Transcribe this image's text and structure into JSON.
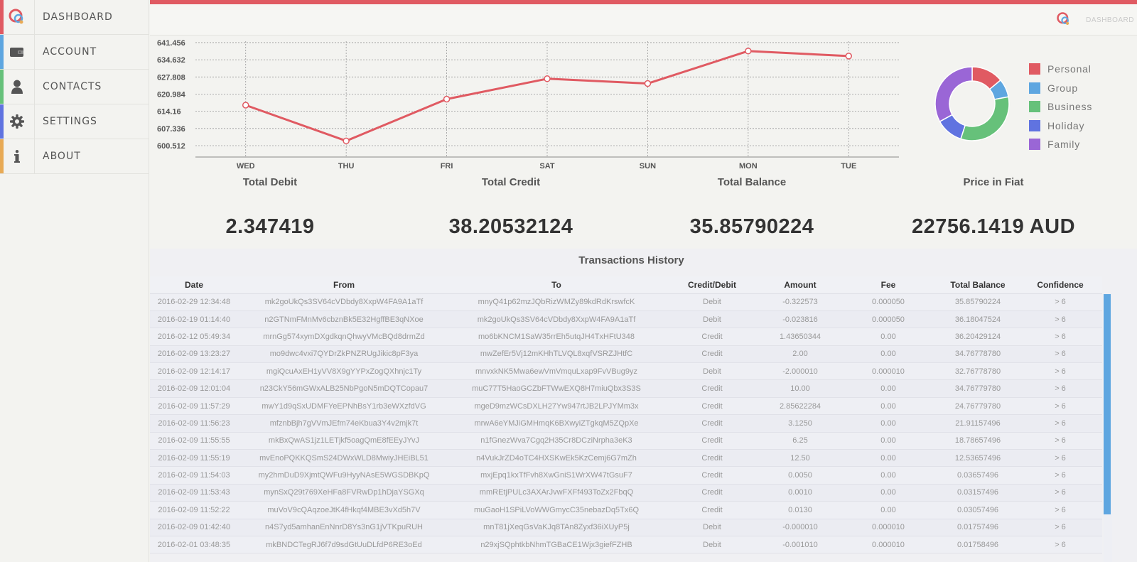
{
  "sidebar": {
    "items": [
      {
        "label": "DASHBOARD",
        "accent": "#e05a62",
        "icon": "app-logo-icon"
      },
      {
        "label": "ACCOUNT",
        "accent": "#5ea6e0",
        "icon": "wallet-icon"
      },
      {
        "label": "CONTACTS",
        "accent": "#66c17a",
        "icon": "user-icon"
      },
      {
        "label": "SETTINGS",
        "accent": "#6073e0",
        "icon": "gear-icon"
      },
      {
        "label": "ABOUT",
        "accent": "#e8aa55",
        "icon": "info-icon"
      }
    ]
  },
  "header": {
    "label": "DASHBOARD"
  },
  "chart_data": [
    {
      "type": "line",
      "categories": [
        "WED",
        "THU",
        "FRI",
        "SAT",
        "SUN",
        "MON",
        "TUE"
      ],
      "values": [
        616.6,
        602.4,
        619.0,
        627.1,
        625.2,
        638.1,
        636.1
      ],
      "yticks": [
        "641.456",
        "634.632",
        "627.808",
        "620.984",
        "614.16",
        "607.336",
        "600.512"
      ],
      "ylim": [
        596.0,
        642.0
      ],
      "grid": true,
      "color": "#e05a62"
    },
    {
      "type": "pie",
      "labels": [
        "Personal",
        "Group",
        "Business",
        "Holiday",
        "Family"
      ],
      "values": [
        14,
        8,
        33,
        12,
        33
      ],
      "colors": [
        "#e05a62",
        "#5ea6e0",
        "#66c17a",
        "#6073e0",
        "#9a66d6"
      ],
      "legend": "right"
    }
  ],
  "stats": [
    {
      "title": "Total Debit",
      "value": "2.347419"
    },
    {
      "title": "Total Credit",
      "value": "38.20532124"
    },
    {
      "title": "Total Balance",
      "value": "35.85790224"
    },
    {
      "title": "Price in Fiat",
      "value": "22756.1419 AUD"
    }
  ],
  "transactions": {
    "title": "Transactions History",
    "columns": [
      "Date",
      "From",
      "To",
      "Credit/Debit",
      "Amount",
      "Fee",
      "Total Balance",
      "Confidence"
    ],
    "rows": [
      [
        "2016-02-29 12:34:48",
        "mk2goUkQs3SV64cVDbdy8XxpW4FA9A1aTf",
        "mnyQ41p62mzJQbRizWMZy89kdRdKrswfcK",
        "Debit",
        "-0.322573",
        "0.000050",
        "35.85790224",
        "> 6"
      ],
      [
        "2016-02-19 01:14:40",
        "n2GTNmFMnMv6cbznBk5E32HgffBE3qNXoe",
        "mk2goUkQs3SV64cVDbdy8XxpW4FA9A1aTf",
        "Debit",
        "-0.023816",
        "0.000050",
        "36.18047524",
        "> 6"
      ],
      [
        "2016-02-12 05:49:34",
        "mrnGg574xymDXgdkqnQhwyVMcBQd8drmZd",
        "mo6bKNCM1SaW35rrEh5utqJH4TxHFtU348",
        "Credit",
        "1.43650344",
        "0.00",
        "36.20429124",
        "> 6"
      ],
      [
        "2016-02-09 13:23:27",
        "mo9dwc4vxi7QYDrZkPNZRUgJikic8pF3ya",
        "mwZefEr5Vj12mKHhTLVQL8xqfVSRZJHtfC",
        "Credit",
        "2.00",
        "0.00",
        "34.76778780",
        "> 6"
      ],
      [
        "2016-02-09 12:14:17",
        "mgiQcuAxEH1yVV8X9gYYPxZogQXhnjc1Ty",
        "mnvxkNK5Mwa6ewVmVmquLxap9FvVBug9yz",
        "Debit",
        "-2.000010",
        "0.000010",
        "32.76778780",
        "> 6"
      ],
      [
        "2016-02-09 12:01:04",
        "n23CkY56mGWxALB25NbPgoN5mDQTCopau7",
        "muC77T5HaoGCZbFTWwEXQ8H7miuQbx3S3S",
        "Credit",
        "10.00",
        "0.00",
        "34.76779780",
        "> 6"
      ],
      [
        "2016-02-09 11:57:29",
        "mwY1d9qSxUDMFYeEPNhBsY1rb3eWXzfdVG",
        "mgeD9mzWCsDXLH27Yw947rtJB2LPJYMm3x",
        "Credit",
        "2.85622284",
        "0.00",
        "24.76779780",
        "> 6"
      ],
      [
        "2016-02-09 11:56:23",
        "mfznbBjh7gVVmJEfm74eKbua3Y4v2mjk7t",
        "mrwA6eYMJiGMHmqK6BXwyiZTgkqM5ZQpXe",
        "Credit",
        "3.1250",
        "0.00",
        "21.91157496",
        "> 6"
      ],
      [
        "2016-02-09 11:55:55",
        "mkBxQwAS1jz1LETjkf5oagQmE8fEEyJYvJ",
        "n1fGnezWva7Cgq2H35Cr8DCziNrpha3eK3",
        "Credit",
        "6.25",
        "0.00",
        "18.78657496",
        "> 6"
      ],
      [
        "2016-02-09 11:55:19",
        "mvEnoPQKKQSmS24DWxWLD8MwiyJHEiBL51",
        "n4VukJrZD4oTC4HXSKwEk5KzCemj6G7mZh",
        "Credit",
        "12.50",
        "0.00",
        "12.53657496",
        "> 6"
      ],
      [
        "2016-02-09 11:54:03",
        "my2hmDuD9XjmtQWFu9HyyNAsE5WGSDBKpQ",
        "mxjEpq1kxTfFvh8XwGniS1WrXW47tGsuF7",
        "Credit",
        "0.0050",
        "0.00",
        "0.03657496",
        "> 6"
      ],
      [
        "2016-02-09 11:53:43",
        "mynSxQ29t769XeHFa8FVRwDp1hDjaYSGXq",
        "mmREtjPULc3AXArJvwFXFf493ToZx2FbqQ",
        "Credit",
        "0.0010",
        "0.00",
        "0.03157496",
        "> 6"
      ],
      [
        "2016-02-09 11:52:22",
        "muVoV9cQAqzoeJtK4fHkqf4MBE3vXd5h7V",
        "muGaoH1SPiLVoWWGmycC35nebazDq5Tx6Q",
        "Credit",
        "0.0130",
        "0.00",
        "0.03057496",
        "> 6"
      ],
      [
        "2016-02-09 01:42:40",
        "n4S7yd5amhanEnNnrD8Ys3nG1jVTKpuRUH",
        "mnT81jXeqGsVaKJq8TAn8Zyxf36iXUyP5j",
        "Debit",
        "-0.000010",
        "0.000010",
        "0.01757496",
        "> 6"
      ],
      [
        "2016-02-01 03:48:35",
        "mkBNDCTegRJ6f7d9sdGtUuDLfdP6RE3oEd",
        "n29xjSQphtkbNhmTGBaCE1Wjx3giefFZHB",
        "Debit",
        "-0.001010",
        "0.000010",
        "0.01758496",
        "> 6"
      ]
    ]
  }
}
